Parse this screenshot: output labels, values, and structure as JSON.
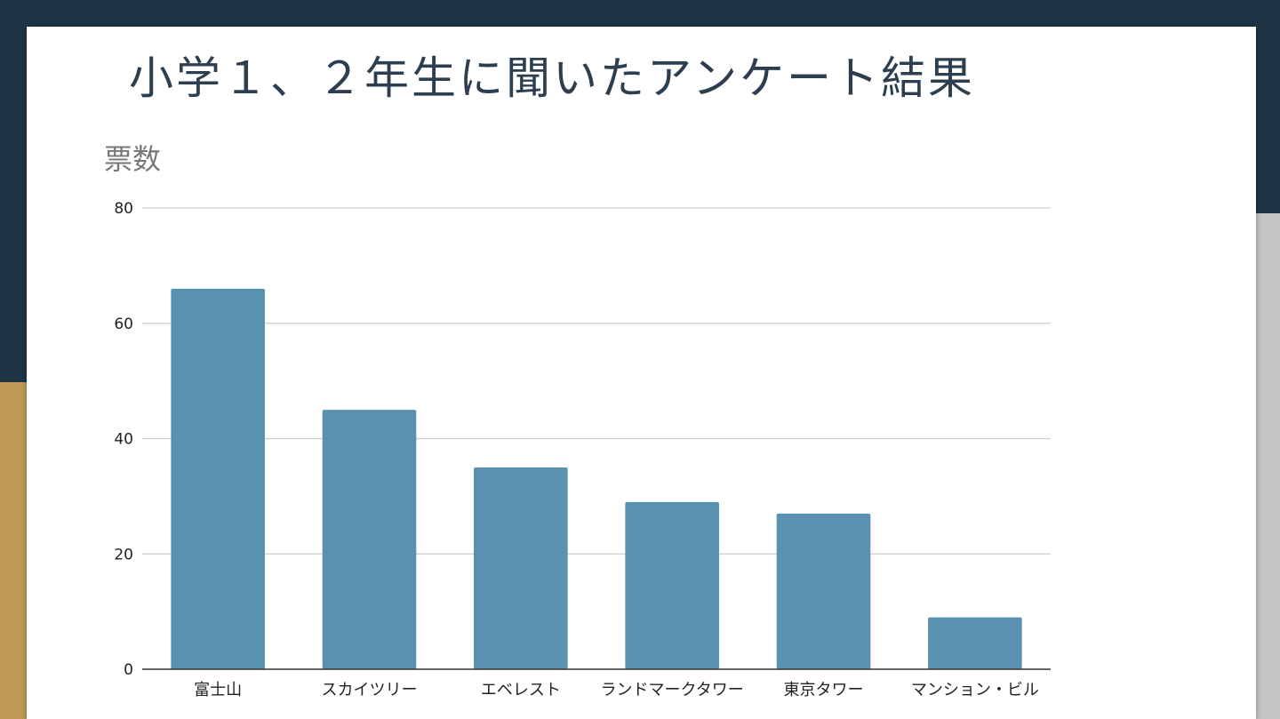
{
  "slide": {
    "title": "小学１、２年生に聞いたアンケート結果"
  },
  "colors": {
    "background_dark": "#1f3545",
    "accent_gold": "#c09a55",
    "accent_gray": "#c4c4c4",
    "bar": "#5a91b0"
  },
  "chart_data": {
    "type": "bar",
    "title": "",
    "ylabel": "票数",
    "xlabel": "",
    "categories": [
      "富士山",
      "スカイツリー",
      "エベレスト",
      "ランドマークタワー",
      "東京タワー",
      "マンション・ビル"
    ],
    "values": [
      66,
      45,
      35,
      29,
      27,
      9
    ],
    "ylim": [
      0,
      80
    ],
    "yticks": [
      0,
      20,
      40,
      60,
      80
    ],
    "grid": true,
    "legend": "none"
  }
}
